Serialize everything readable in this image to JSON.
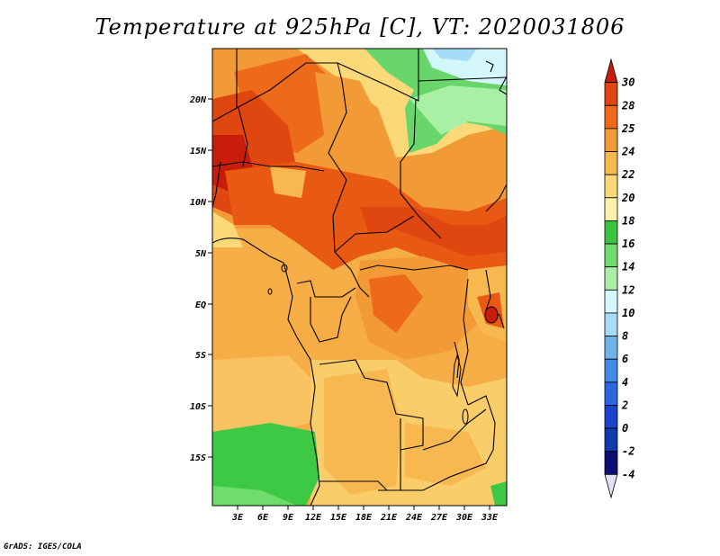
{
  "title": "Temperature at 925hPa [C], VT: 2020031806",
  "credit": "GrADS: IGES/COLA",
  "map": {
    "lat_ticks": [
      "20N",
      "15N",
      "10N",
      "5N",
      "EQ",
      "5S",
      "10S",
      "15S"
    ],
    "lon_ticks": [
      "3E",
      "6E",
      "9E",
      "12E",
      "15E",
      "18E",
      "21E",
      "24E",
      "27E",
      "30E",
      "33E"
    ],
    "regions": [
      {
        "name": "west-hot",
        "color": "#e0460f"
      },
      {
        "name": "central-hot-band",
        "color": "#e85a14"
      },
      {
        "name": "north-warm",
        "color": "#f29a35"
      },
      {
        "name": "north-cool",
        "color": "#69d66b"
      },
      {
        "name": "south-west-cool",
        "color": "#3ec945"
      },
      {
        "name": "south-mild",
        "color": "#f9cd6a"
      }
    ]
  },
  "colorbar": {
    "labels": [
      "30",
      "28",
      "25",
      "24",
      "22",
      "20",
      "18",
      "16",
      "14",
      "12",
      "10",
      "8",
      "6",
      "4",
      "2",
      "0",
      "-2",
      "-4"
    ],
    "colors": [
      "#c81d0a",
      "#e0460f",
      "#ec6a19",
      "#f29a35",
      "#f8b850",
      "#fbd978",
      "#fdf2aa",
      "#3cc441",
      "#6fdd6e",
      "#a9efa5",
      "#d4f7fb",
      "#a7dcf9",
      "#6fb3ed",
      "#4588e6",
      "#2a66de",
      "#1a44c9",
      "#103aac",
      "#0d0d75",
      "#e0e0f8"
    ]
  }
}
